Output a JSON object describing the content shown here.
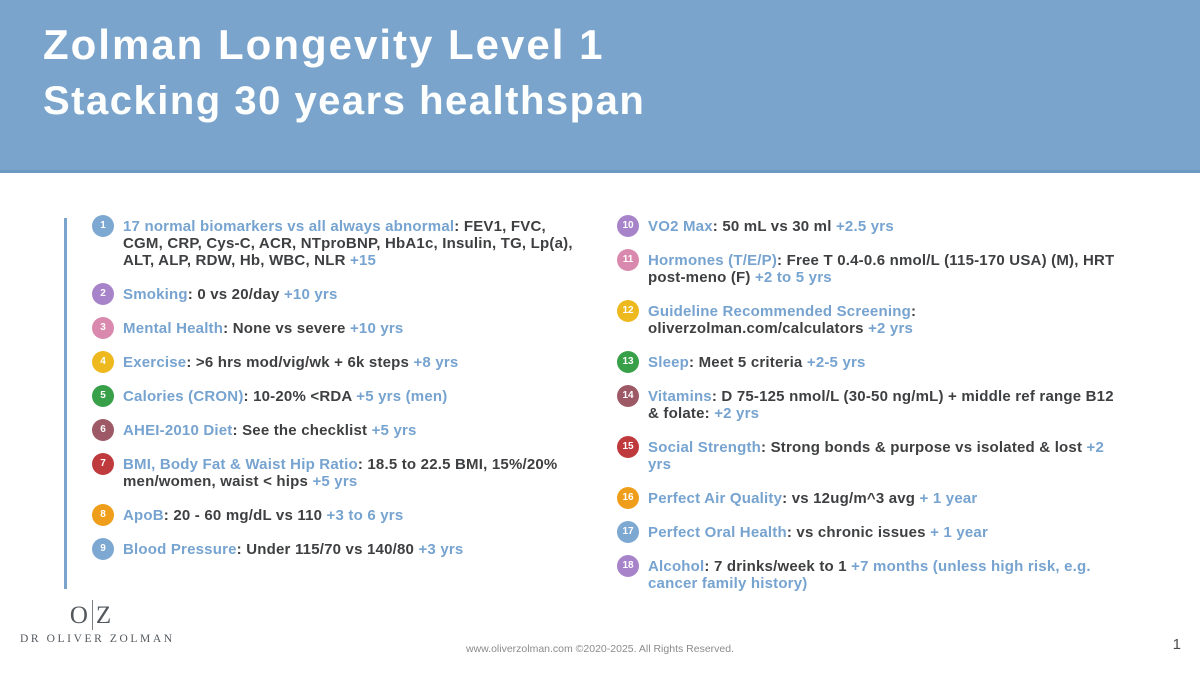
{
  "header": {
    "title_line1": "Zolman Longevity Level 1",
    "title_line2": "Stacking 30 years healthspan",
    "bg_color": "#7aa4cb"
  },
  "colors": {
    "accent_blue": "#76a3cf",
    "text_dark": "#3e3f41",
    "badge": {
      "blue": "#7da8d2",
      "purple": "#a783c9",
      "pink": "#d989ad",
      "yellow": "#edb91f",
      "green": "#39a04a",
      "maroon": "#9d5a66",
      "red": "#bf3a3d",
      "orange": "#ef9e1b"
    }
  },
  "items": {
    "left": [
      {
        "number": "1",
        "badge": "blue",
        "label": "17 normal biomarkers vs all always abnormal",
        "text": ": FEV1, FVC, CGM, CRP, Cys-C, ACR, NTproBNP, HbA1c, Insulin, TG, Lp(a), ALT, ALP, RDW, Hb, WBC, NLR",
        "bonus": "+15"
      },
      {
        "number": "2",
        "badge": "purple",
        "label": "Smoking",
        "text": ": 0 vs 20/day",
        "bonus": "+10 yrs"
      },
      {
        "number": "3",
        "badge": "pink",
        "label": "Mental Health",
        "text": ": None vs severe",
        "bonus": "+10 yrs"
      },
      {
        "number": "4",
        "badge": "yellow",
        "label": "Exercise",
        "text": ": >6 hrs mod/vig/wk + 6k steps",
        "bonus": "+8 yrs"
      },
      {
        "number": "5",
        "badge": "green",
        "label": "Calories (CRON)",
        "text": ": 10-20% <RDA",
        "bonus": "+5 yrs (men)"
      },
      {
        "number": "6",
        "badge": "maroon",
        "label": "AHEI-2010 Diet",
        "text": ": See the checklist",
        "bonus": "+5 yrs"
      },
      {
        "number": "7",
        "badge": "red",
        "label": "BMI, Body Fat & Waist Hip Ratio",
        "text": ": 18.5 to 22.5 BMI, 15%/20% men/women, waist < hips",
        "bonus": "+5 yrs"
      },
      {
        "number": "8",
        "badge": "orange",
        "label": "ApoB",
        "text": ": 20 - 60 mg/dL vs 110",
        "bonus": "+3 to 6 yrs"
      },
      {
        "number": "9",
        "badge": "blue",
        "label": "Blood Pressure",
        "text": ": Under 115/70 vs 140/80",
        "bonus": "+3 yrs"
      }
    ],
    "right": [
      {
        "number": "10",
        "badge": "purple",
        "label": "VO2 Max",
        "text": ": 50 mL vs 30 ml",
        "bonus": "+2.5 yrs"
      },
      {
        "number": "11",
        "badge": "pink",
        "label": "Hormones (T/E/P)",
        "text": ": Free T 0.4-0.6 nmol/L (115-170 USA) (M), HRT post-meno (F)",
        "bonus": "+2 to 5 yrs"
      },
      {
        "number": "12",
        "badge": "yellow",
        "label": "Guideline Recommended Screening",
        "text": ": oliverzolman.com/calculators",
        "bonus": "+2 yrs"
      },
      {
        "number": "13",
        "badge": "green",
        "label": "Sleep",
        "text": ": Meet 5 criteria",
        "bonus": "+2-5 yrs"
      },
      {
        "number": "14",
        "badge": "maroon",
        "label": "Vitamins",
        "text": ": D 75-125 nmol/L (30-50 ng/mL) + middle ref range B12 & folate:",
        "bonus": "+2 yrs"
      },
      {
        "number": "15",
        "badge": "red",
        "label": "Social Strength",
        "text": ": Strong bonds & purpose vs isolated & lost",
        "bonus": "+2 yrs"
      },
      {
        "number": "16",
        "badge": "orange",
        "label": "Perfect Air Quality",
        "text": ": vs 12ug/m^3 avg",
        "bonus": "+ 1 year"
      },
      {
        "number": "17",
        "badge": "blue",
        "label": "Perfect Oral Health",
        "text": ": vs chronic issues",
        "bonus": "+ 1 year"
      },
      {
        "number": "18",
        "badge": "purple",
        "label": "Alcohol",
        "text": ": 7 drinks/week to 1",
        "bonus": "+7 months (unless high risk, e.g. cancer family history)"
      }
    ]
  },
  "footer": {
    "logo_letter_o": "O",
    "logo_letter_z": "Z",
    "brand_name": "DR OLIVER ZOLMAN",
    "copyright": "www.oliverzolman.com ©2020-2025. All Rights Reserved.",
    "page_number": "1"
  }
}
